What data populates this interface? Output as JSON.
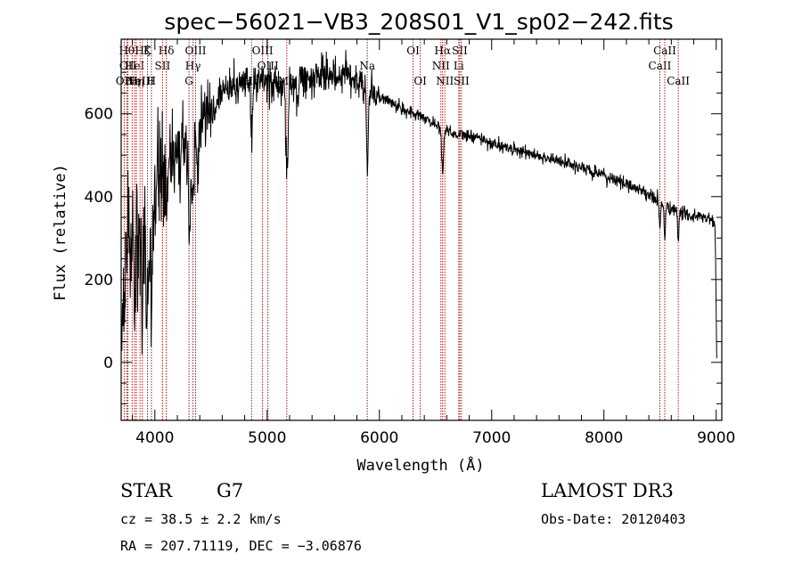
{
  "chart_data": {
    "type": "line",
    "title": "spec−56021−VB3_208S01_V1_sp02−242.fits",
    "xlabel": "Wavelength (Å)",
    "ylabel": "Flux (relative)",
    "xlim": [
      3700,
      9050
    ],
    "ylim": [
      -140,
      780
    ],
    "xticks": [
      4000,
      5000,
      6000,
      7000,
      8000,
      9000
    ],
    "yticks": [
      0,
      200,
      400,
      600
    ],
    "xtick_labels": [
      "4000",
      "5000",
      "6000",
      "7000",
      "8000",
      "9000"
    ],
    "ytick_labels": [
      "0",
      "200",
      "400",
      "600"
    ],
    "spectrum_anchors": [
      [
        3700,
        20
      ],
      [
        3720,
        80
      ],
      [
        3740,
        180
      ],
      [
        3760,
        300
      ],
      [
        3780,
        260
      ],
      [
        3800,
        380
      ],
      [
        3830,
        330
      ],
      [
        3860,
        360
      ],
      [
        3880,
        300
      ],
      [
        3900,
        400
      ],
      [
        3930,
        300
      ],
      [
        3950,
        380
      ],
      [
        3980,
        420
      ],
      [
        4000,
        460
      ],
      [
        4050,
        480
      ],
      [
        4100,
        470
      ],
      [
        4150,
        500
      ],
      [
        4200,
        520
      ],
      [
        4250,
        530
      ],
      [
        4300,
        520
      ],
      [
        4350,
        540
      ],
      [
        4400,
        560
      ],
      [
        4450,
        590
      ],
      [
        4500,
        600
      ],
      [
        4550,
        630
      ],
      [
        4600,
        650
      ],
      [
        4650,
        660
      ],
      [
        4700,
        665
      ],
      [
        4750,
        670
      ],
      [
        4800,
        680
      ],
      [
        4850,
        680
      ],
      [
        4900,
        670
      ],
      [
        4950,
        680
      ],
      [
        5000,
        680
      ],
      [
        5050,
        670
      ],
      [
        5100,
        660
      ],
      [
        5150,
        670
      ],
      [
        5200,
        660
      ],
      [
        5250,
        680
      ],
      [
        5300,
        680
      ],
      [
        5350,
        680
      ],
      [
        5400,
        690
      ],
      [
        5450,
        690
      ],
      [
        5500,
        690
      ],
      [
        5550,
        690
      ],
      [
        5600,
        700
      ],
      [
        5650,
        690
      ],
      [
        5700,
        700
      ],
      [
        5750,
        700
      ],
      [
        5800,
        680
      ],
      [
        5850,
        670
      ],
      [
        5900,
        660
      ],
      [
        5950,
        650
      ],
      [
        6000,
        640
      ],
      [
        6100,
        630
      ],
      [
        6200,
        610
      ],
      [
        6300,
        600
      ],
      [
        6400,
        590
      ],
      [
        6500,
        575
      ],
      [
        6600,
        560
      ],
      [
        6700,
        550
      ],
      [
        6800,
        545
      ],
      [
        6900,
        540
      ],
      [
        7000,
        530
      ],
      [
        7100,
        520
      ],
      [
        7200,
        515
      ],
      [
        7300,
        505
      ],
      [
        7400,
        500
      ],
      [
        7500,
        493
      ],
      [
        7600,
        485
      ],
      [
        7700,
        478
      ],
      [
        7800,
        470
      ],
      [
        7900,
        460
      ],
      [
        8000,
        450
      ],
      [
        8100,
        440
      ],
      [
        8200,
        430
      ],
      [
        8300,
        420
      ],
      [
        8400,
        405
      ],
      [
        8500,
        385
      ],
      [
        8600,
        370
      ],
      [
        8700,
        360
      ],
      [
        8800,
        352
      ],
      [
        8900,
        350
      ],
      [
        8950,
        345
      ],
      [
        8990,
        330
      ]
    ],
    "absorption_features": [
      {
        "center": 3820,
        "depth": 200,
        "width": 8
      },
      {
        "center": 3890,
        "depth": 180,
        "width": 8
      },
      {
        "center": 3934,
        "depth": 250,
        "width": 10
      },
      {
        "center": 3969,
        "depth": 220,
        "width": 10
      },
      {
        "center": 4102,
        "depth": 120,
        "width": 8
      },
      {
        "center": 4227,
        "depth": 90,
        "width": 6
      },
      {
        "center": 4308,
        "depth": 200,
        "width": 10
      },
      {
        "center": 4340,
        "depth": 160,
        "width": 8
      },
      {
        "center": 4384,
        "depth": 60,
        "width": 6
      },
      {
        "center": 4861,
        "depth": 120,
        "width": 8
      },
      {
        "center": 5172,
        "depth": 170,
        "width": 8
      },
      {
        "center": 5184,
        "depth": 100,
        "width": 6
      },
      {
        "center": 5270,
        "depth": 50,
        "width": 6
      },
      {
        "center": 5890,
        "depth": 120,
        "width": 6
      },
      {
        "center": 5896,
        "depth": 110,
        "width": 6
      },
      {
        "center": 6563,
        "depth": 110,
        "width": 8
      },
      {
        "center": 8498,
        "depth": 60,
        "width": 6
      },
      {
        "center": 8542,
        "depth": 80,
        "width": 6
      },
      {
        "center": 8662,
        "depth": 70,
        "width": 6
      }
    ],
    "tail": [
      [
        8995,
        240
      ],
      [
        9000,
        120
      ],
      [
        9005,
        10
      ]
    ],
    "noise": {
      "blue_sigma": 80,
      "mid_sigma": 22,
      "red_sigma": 8
    },
    "line_markers": [
      {
        "wavelength": 3727,
        "label": "OII",
        "row": 2
      },
      {
        "wavelength": 3750,
        "label": "Hθ",
        "row": 0
      },
      {
        "wavelength": 3760,
        "label": "OII",
        "row": 1
      },
      {
        "wavelength": 3798,
        "label": "Hη",
        "row": 2
      },
      {
        "wavelength": 3820,
        "label": "HeI",
        "row": 1
      },
      {
        "wavelength": 3835,
        "label": "Hη",
        "row": 2
      },
      {
        "wavelength": 3868,
        "label": "NeIII",
        "row": 2
      },
      {
        "wavelength": 3889,
        "label": "Hζ",
        "row": 0
      },
      {
        "wavelength": 3934,
        "label": "K",
        "row": 0
      },
      {
        "wavelength": 3969,
        "label": "H",
        "row": 2
      },
      {
        "wavelength": 4068,
        "label": "SII",
        "row": 1
      },
      {
        "wavelength": 4102,
        "label": "Hδ",
        "row": 0
      },
      {
        "wavelength": 4304,
        "label": "G",
        "row": 2
      },
      {
        "wavelength": 4340,
        "label": "Hγ",
        "row": 1
      },
      {
        "wavelength": 4363,
        "label": "OIII",
        "row": 0
      },
      {
        "wavelength": 4861,
        "label": "Hβ",
        "row": 2
      },
      {
        "wavelength": 4959,
        "label": "OIII",
        "row": 0
      },
      {
        "wavelength": 5007,
        "label": "OIII",
        "row": 1
      },
      {
        "wavelength": 5175,
        "label": "Mg",
        "row": 2
      },
      {
        "wavelength": 5892,
        "label": "Na",
        "row": 1
      },
      {
        "wavelength": 6300,
        "label": "OI",
        "row": 0
      },
      {
        "wavelength": 6364,
        "label": "OI",
        "row": 2
      },
      {
        "wavelength": 6548,
        "label": "NII",
        "row": 1
      },
      {
        "wavelength": 6563,
        "label": "Hα",
        "row": 0
      },
      {
        "wavelength": 6583,
        "label": "NII",
        "row": 2
      },
      {
        "wavelength": 6707,
        "label": "Li",
        "row": 1
      },
      {
        "wavelength": 6716,
        "label": "SII",
        "row": 0
      },
      {
        "wavelength": 6731,
        "label": "SII",
        "row": 2
      },
      {
        "wavelength": 8498,
        "label": "CaII",
        "row": 1
      },
      {
        "wavelength": 8542,
        "label": "CaII",
        "row": 0
      },
      {
        "wavelength": 8662,
        "label": "CaII",
        "row": 2
      }
    ],
    "colors": {
      "spectrum": "#000000",
      "markers": "#a81818",
      "axes": "#000000"
    }
  },
  "info": {
    "object_class": "STAR",
    "subclass": "G7",
    "survey": "LAMOST DR3",
    "redshift": "cz = 38.5 ± 2.2 km/s",
    "obs_date": "Obs-Date: 20120403",
    "coords": "RA = 207.71119, DEC =  −3.06876"
  }
}
